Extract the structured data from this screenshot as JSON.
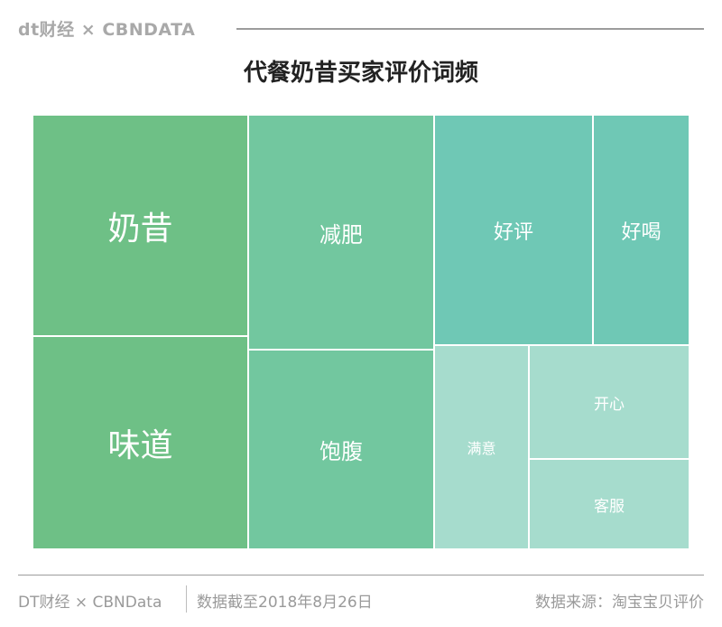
{
  "header": {
    "brand": "dt财经 × CBNDATA"
  },
  "chart_data": {
    "type": "treemap",
    "title": "代餐奶昔买家评价词频",
    "items": [
      {
        "label": "奶昔",
        "group": 1,
        "color": "#6ec086"
      },
      {
        "label": "味道",
        "group": 1,
        "color": "#6ec086"
      },
      {
        "label": "减肥",
        "group": 2,
        "color": "#72c79f"
      },
      {
        "label": "饱腹",
        "group": 2,
        "color": "#72c79f"
      },
      {
        "label": "好评",
        "group": 3,
        "color": "#6fc8b5"
      },
      {
        "label": "好喝",
        "group": 3,
        "color": "#6fc8b5"
      },
      {
        "label": "满意",
        "group": 4,
        "color": "#a6dccd"
      },
      {
        "label": "开心",
        "group": 4,
        "color": "#a6dccd"
      },
      {
        "label": "客服",
        "group": 4,
        "color": "#a6dccd"
      }
    ]
  },
  "footer": {
    "source_brand": "DT财经 × CBNData",
    "date_note": "数据截至2018年8月26日",
    "data_source": "数据来源：淘宝宝贝评价"
  }
}
